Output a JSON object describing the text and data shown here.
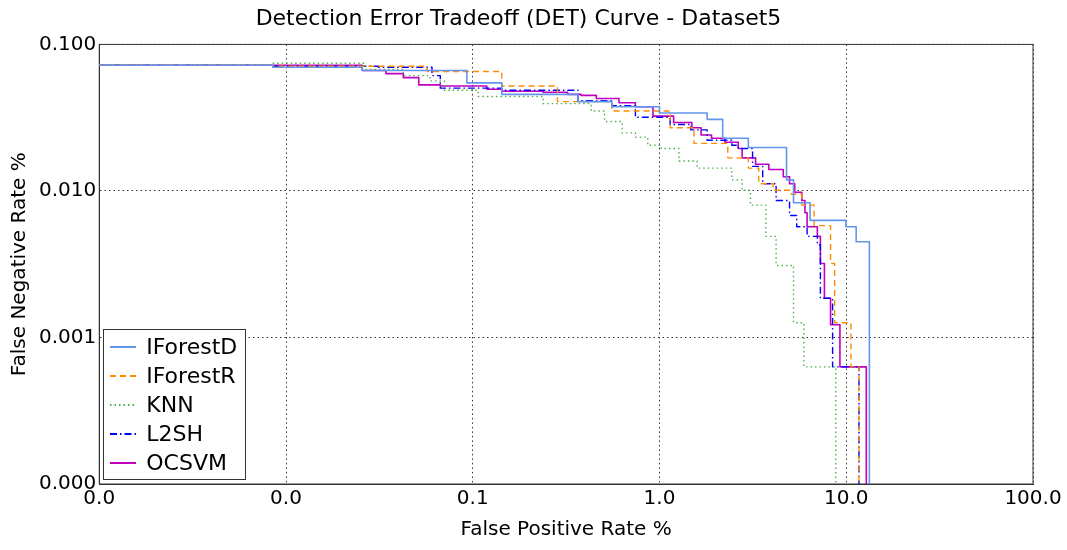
{
  "chart_data": {
    "type": "step",
    "title": "Detection Error Tradeoff (DET) Curve - Dataset5",
    "xlabel": "False Positive Rate %",
    "ylabel": "False Negative Rate %",
    "log": "xy",
    "grid": true,
    "legend": "bottom left",
    "xlim": [
      0.001,
      100
    ],
    "xticks": [
      {
        "value": 0.001,
        "label": "0.0"
      },
      {
        "value": 0.01,
        "label": "0.0"
      },
      0.1,
      {
        "value": 1,
        "label": "1.0"
      },
      {
        "value": 10,
        "label": "10.0"
      },
      {
        "value": 100,
        "label": "100.0"
      }
    ],
    "ylim": [
      0.0001,
      0.1
    ],
    "yticks": [
      {
        "value": 0.0001,
        "label": "0.000"
      },
      {
        "value": 0.001,
        "label": "0.001"
      },
      {
        "value": 0.01,
        "label": "0.010"
      },
      {
        "value": 0.1,
        "label": "0.100"
      }
    ],
    "series": [
      {
        "name": "IForestD",
        "color": "#6495ed",
        "line_style": "solid",
        "x": [
          0.001,
          0.0085,
          0.0256,
          0.093,
          0.143,
          0.366,
          0.556,
          1.0,
          1.8,
          2.18,
          2.99,
          4.79,
          5.22,
          6.4,
          9.97,
          11.3,
          13.3,
          13.3
        ],
        "values": [
          0.072,
          0.0698,
          0.0664,
          0.0546,
          0.0456,
          0.0407,
          0.0375,
          0.034,
          0.0308,
          0.0229,
          0.0198,
          0.0119,
          0.0083,
          0.0063,
          0.0057,
          0.0045,
          0.0037,
          0.0001
        ]
      },
      {
        "name": "IForestR",
        "color": "#ff8c00",
        "line_style": "dashed",
        "x": [
          0.001,
          0.0085,
          0.057,
          0.143,
          0.284,
          0.556,
          1.14,
          1.53,
          2.32,
          2.99,
          3.4,
          4.06,
          5.09,
          5.78,
          6.73,
          8.24,
          8.67,
          10.6,
          11.7
        ],
        "values": [
          0.072,
          0.071,
          0.0653,
          0.052,
          0.0407,
          0.0351,
          0.027,
          0.0211,
          0.0168,
          0.0143,
          0.0112,
          0.0101,
          0.0095,
          0.008,
          0.0058,
          0.0032,
          0.00126,
          0.00063,
          0.0001
        ]
      },
      {
        "name": "KNN",
        "color": "#4daf4a",
        "line_style": "dotted",
        "x": [
          0.001,
          0.0085,
          0.0266,
          0.0425,
          0.059,
          0.0705,
          0.107,
          0.238,
          0.431,
          0.508,
          0.631,
          0.743,
          0.865,
          1.02,
          1.27,
          1.59,
          2.44,
          2.77,
          3.07,
          3.71,
          4.21,
          5.22,
          5.93,
          8.79
        ],
        "values": [
          0.072,
          0.0744,
          0.0675,
          0.0612,
          0.0564,
          0.0487,
          0.0441,
          0.0394,
          0.0351,
          0.0298,
          0.0249,
          0.0233,
          0.0205,
          0.0195,
          0.016,
          0.0143,
          0.0119,
          0.0101,
          0.008,
          0.0049,
          0.0031,
          0.00126,
          0.00063,
          0.0001
        ]
      },
      {
        "name": "L2SH",
        "color": "#0000ff",
        "line_style": "dashdot",
        "x": [
          0.001,
          0.0085,
          0.0313,
          0.0605,
          0.067,
          0.143,
          0.366,
          0.556,
          0.743,
          1.14,
          1.47,
          1.8,
          2.44,
          2.64,
          3.15,
          3.57,
          4.21,
          4.97,
          5.43,
          6.17,
          7.0,
          7.27,
          8.45,
          11.7
        ],
        "values": [
          0.072,
          0.071,
          0.0698,
          0.0612,
          0.0503,
          0.0487,
          0.0413,
          0.0381,
          0.0318,
          0.0284,
          0.0261,
          0.0222,
          0.0205,
          0.0195,
          0.0147,
          0.0112,
          0.0086,
          0.0068,
          0.0057,
          0.0049,
          0.0043,
          0.00185,
          0.00063,
          0.0001
        ]
      },
      {
        "name": "OCSVM",
        "color": "#bf00bf",
        "line_style": "solid",
        "x": [
          0.001,
          0.0256,
          0.0343,
          0.0425,
          0.0514,
          0.067,
          0.119,
          0.143,
          0.238,
          0.322,
          0.38,
          0.459,
          0.607,
          0.743,
          0.923,
          1.19,
          1.49,
          1.67,
          1.9,
          2.24,
          2.64,
          2.77,
          3.27,
          3.85,
          4.6,
          4.97,
          5.3,
          5.78,
          6.01,
          6.17,
          7.0,
          7.27,
          7.64,
          8.24,
          9.25,
          12.8
        ],
        "values": [
          0.072,
          0.0664,
          0.0632,
          0.0593,
          0.0529,
          0.052,
          0.0494,
          0.0479,
          0.0471,
          0.0456,
          0.0449,
          0.0427,
          0.04,
          0.0375,
          0.0324,
          0.0293,
          0.027,
          0.0241,
          0.0229,
          0.0215,
          0.0195,
          0.0168,
          0.0152,
          0.014,
          0.0125,
          0.0112,
          0.0098,
          0.0086,
          0.0071,
          0.0057,
          0.0049,
          0.0032,
          0.00185,
          0.00122,
          0.00063,
          0.0001
        ]
      }
    ]
  }
}
